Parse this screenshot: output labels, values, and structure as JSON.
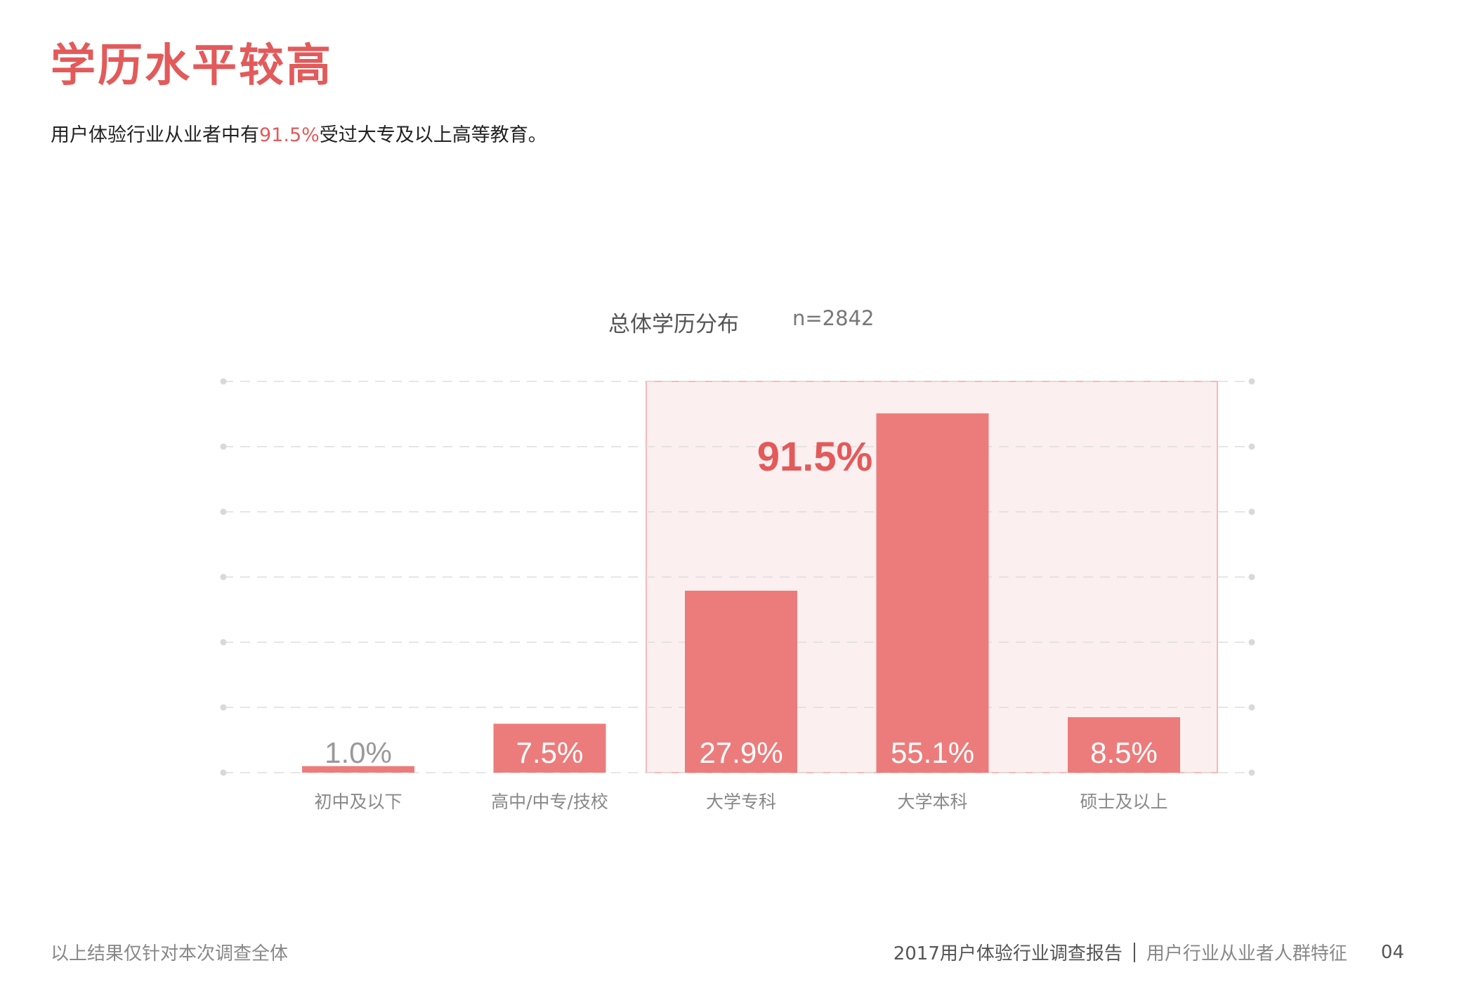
{
  "page": {
    "title": "学历水平较高",
    "subtitle_pre": "用户体验行业从业者中有",
    "subtitle_highlight": "91.5%",
    "subtitle_post": "受过大专及以上高等教育。",
    "footer_note": "以上结果仅针对本次调查全体",
    "footer_report": "2017用户体验行业调查报告",
    "footer_section": "用户行业从业者人群特征",
    "page_number": "04"
  },
  "colors": {
    "accent": "#e35a5a",
    "bar": "#ec7c7b",
    "highlight_bg": "#fcefef",
    "highlight_border": "#f0a7a6"
  },
  "chart_data": {
    "type": "bar",
    "title": "总体学历分布",
    "sample_size_label": "n=2842",
    "categories": [
      "初中及以下",
      "高中/中专/技校",
      "大学专科",
      "大学本科",
      "硕士及以上"
    ],
    "values": [
      1.0,
      7.5,
      27.9,
      55.1,
      8.5
    ],
    "value_labels": [
      "1.0%",
      "7.5%",
      "27.9%",
      "55.1%",
      "8.5%"
    ],
    "ylim": [
      0,
      60
    ],
    "grid": true,
    "highlight": {
      "categories": [
        "大学专科",
        "大学本科",
        "硕士及以上"
      ],
      "label": "91.5%"
    }
  }
}
